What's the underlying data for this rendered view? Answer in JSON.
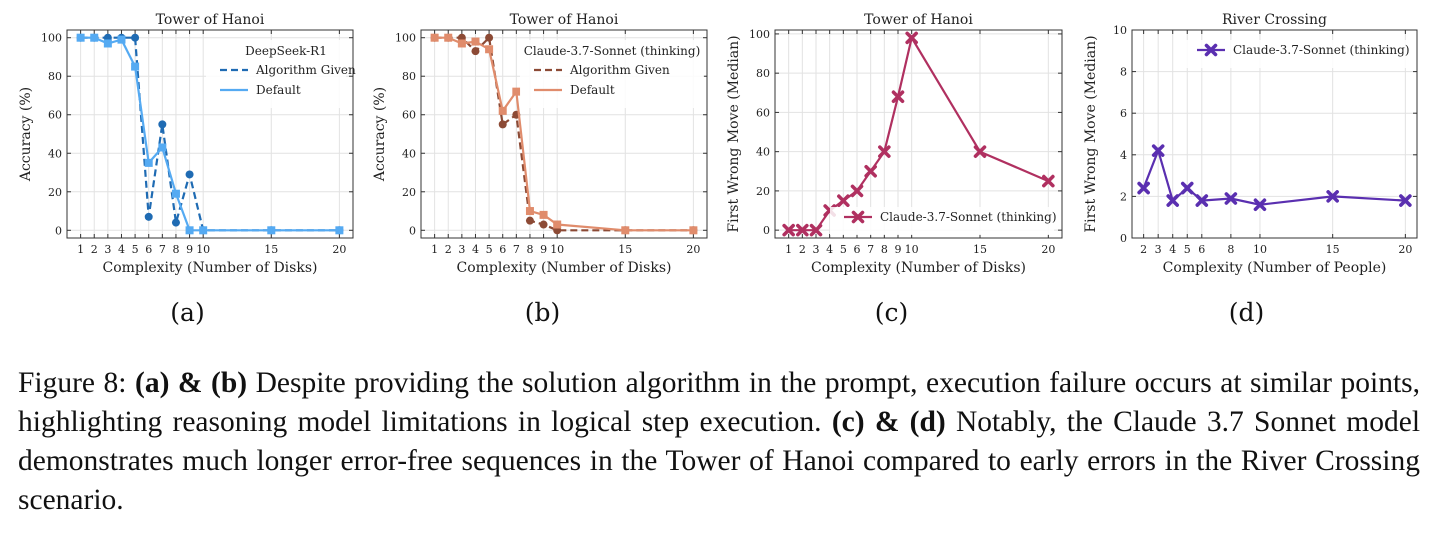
{
  "chart_data": [
    {
      "type": "line",
      "title": "Tower of Hanoi",
      "xlabel": "Complexity (Number of Disks)",
      "ylabel": "Accuracy (%)",
      "xlim": [
        0,
        21
      ],
      "ylim": [
        -4,
        104
      ],
      "xticks": [
        1,
        2,
        3,
        4,
        5,
        6,
        7,
        8,
        9,
        10,
        15,
        20
      ],
      "yticks": [
        0,
        20,
        40,
        60,
        80,
        100
      ],
      "legend_title": "DeepSeek-R1",
      "legend_position": "top-right",
      "series": [
        {
          "name": "Algorithm Given",
          "style": "dashed",
          "marker": "circle",
          "color": "#1f6bb3",
          "x": [
            1,
            2,
            3,
            4,
            5,
            6,
            7,
            8,
            9,
            10,
            15,
            20
          ],
          "y": [
            100,
            100,
            100,
            100,
            100,
            7,
            55,
            4,
            29,
            0,
            0,
            0
          ]
        },
        {
          "name": "Default",
          "style": "solid",
          "marker": "square",
          "color": "#55aaf2",
          "x": [
            1,
            2,
            3,
            4,
            5,
            6,
            7,
            8,
            9,
            10,
            15,
            20
          ],
          "y": [
            100,
            100,
            97,
            99,
            85,
            35,
            43,
            19,
            0,
            0,
            0,
            0
          ]
        }
      ]
    },
    {
      "type": "line",
      "title": "Tower of Hanoi",
      "xlabel": "Complexity (Number of Disks)",
      "ylabel": "Accuracy (%)",
      "xlim": [
        0,
        21
      ],
      "ylim": [
        -4,
        104
      ],
      "xticks": [
        1,
        2,
        3,
        4,
        5,
        6,
        7,
        8,
        9,
        10,
        15,
        20
      ],
      "yticks": [
        0,
        20,
        40,
        60,
        80,
        100
      ],
      "legend_title": "Claude-3.7-Sonnet (thinking)",
      "legend_position": "top-right",
      "series": [
        {
          "name": "Algorithm Given",
          "style": "dashed",
          "marker": "circle",
          "color": "#8c4a35",
          "x": [
            1,
            2,
            3,
            4,
            5,
            6,
            7,
            8,
            9,
            10,
            15,
            20
          ],
          "y": [
            100,
            100,
            100,
            93,
            100,
            55,
            60,
            5,
            3,
            0,
            0,
            0
          ]
        },
        {
          "name": "Default",
          "style": "solid",
          "marker": "square",
          "color": "#e08c6c",
          "x": [
            1,
            2,
            3,
            4,
            5,
            6,
            7,
            8,
            9,
            10,
            15,
            20
          ],
          "y": [
            100,
            100,
            97,
            98,
            94,
            62,
            72,
            10,
            8,
            3,
            0,
            0
          ]
        }
      ]
    },
    {
      "type": "line",
      "title": "Tower of Hanoi",
      "xlabel": "Complexity (Number of Disks)",
      "ylabel": "First Wrong Move (Median)",
      "xlim": [
        0,
        21
      ],
      "ylim": [
        -4,
        102
      ],
      "xticks": [
        1,
        2,
        3,
        4,
        5,
        6,
        7,
        8,
        9,
        10,
        15,
        20
      ],
      "yticks": [
        0,
        20,
        40,
        60,
        80,
        100
      ],
      "legend_position": "bottom-right",
      "series": [
        {
          "name": "Claude-3.7-Sonnet (thinking)",
          "style": "solid",
          "marker": "x",
          "color": "#b03060",
          "x": [
            1,
            2,
            3,
            4,
            5,
            6,
            7,
            8,
            9,
            10,
            15,
            20
          ],
          "y": [
            0,
            0,
            0,
            10,
            15,
            20,
            30,
            40,
            68,
            98,
            40,
            25
          ]
        }
      ]
    },
    {
      "type": "line",
      "title": "River Crossing",
      "xlabel": "Complexity (Number of People)",
      "ylabel": "First Wrong Move (Median)",
      "xlim": [
        1.2,
        20.8
      ],
      "ylim": [
        0,
        10
      ],
      "xticks": [
        2,
        3,
        4,
        5,
        6,
        8,
        10,
        15,
        20
      ],
      "yticks": [
        0,
        2,
        4,
        6,
        8,
        10
      ],
      "legend_position": "top-right",
      "series": [
        {
          "name": "Claude-3.7-Sonnet (thinking)",
          "style": "solid",
          "marker": "x",
          "color": "#5a2fb0",
          "x": [
            2,
            3,
            4,
            5,
            6,
            8,
            10,
            15,
            20
          ],
          "y": [
            2.4,
            4.2,
            1.8,
            2.4,
            1.8,
            1.9,
            1.6,
            2.0,
            1.8
          ]
        }
      ]
    }
  ],
  "subfigure_labels": [
    "(a)",
    "(b)",
    "(c)",
    "(d)"
  ],
  "caption": {
    "prefix": "Figure 8: ",
    "bold1": "(a) & (b)",
    "text1": " Despite providing the solution algorithm in the prompt, execution failure occurs at similar points, highlighting reasoning model limitations in logical step execution. ",
    "bold2": "(c) & (d)",
    "text2": " Notably, the Claude 3.7 Sonnet model demonstrates much longer error-free sequences in the Tower of Hanoi compared to early errors in the River Crossing scenario."
  }
}
